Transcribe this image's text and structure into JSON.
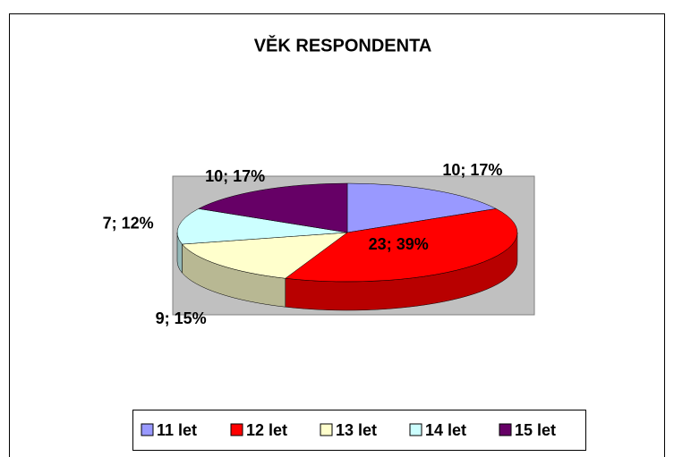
{
  "chart_data": {
    "type": "pie",
    "title": "VĚK RESPONDENTA",
    "categories": [
      "11 let",
      "12 let",
      "13 let",
      "14 let",
      "15 let"
    ],
    "values": [
      10,
      23,
      9,
      7,
      10
    ],
    "value_labels": [
      "10; 17%",
      "23; 39%",
      "9; 15%",
      "7; 12%",
      "10; 17%"
    ],
    "colors": [
      "#9999ff",
      "#ff0000",
      "#ffffcc",
      "#ccffff",
      "#660066"
    ],
    "legend": "bottom"
  }
}
